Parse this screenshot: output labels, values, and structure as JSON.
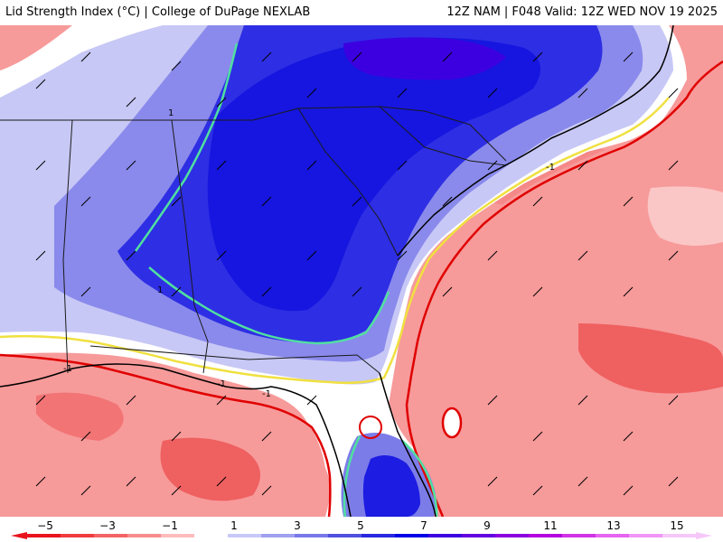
{
  "header": {
    "title_left": "Lid Strength Index (°C) | College of DuPage NEXLAB",
    "title_right": "12Z NAM | F048 Valid: 12Z WED NOV 19 2025"
  },
  "legend": {
    "ticks": [
      "−5",
      "−3",
      "−1",
      "1",
      "3",
      "5",
      "7",
      "9",
      "11",
      "13",
      "15"
    ],
    "colors": [
      "#e8141e",
      "#f03c3c",
      "#f46464",
      "#f88c8c",
      "#fcbcbc",
      "#ffffff",
      "#c8c8f8",
      "#a0a0f0",
      "#7878ea",
      "#5050e0",
      "#2828e0",
      "#0000e6",
      "#3c00e0",
      "#6400e0",
      "#8c00e0",
      "#b400e0",
      "#d232e6",
      "#e664f0",
      "#f096f6",
      "#f6c8fa"
    ]
  },
  "map": {
    "contour_labels": [
      "-1",
      "-1",
      "-1",
      "1",
      "1",
      "-1"
    ],
    "colors": {
      "ocean_base": "#f79a9a",
      "ocean_strong": "#ef5f5f",
      "land_light": "#b9b9f2",
      "land_mid": "#7c7ce9",
      "land_strong": "#2c2ce3",
      "land_core": "#1414e0",
      "contour_red": "#e00000",
      "contour_yellow": "#f0e040",
      "contour_green": "#50e0a0",
      "contour_orange": "#f4b070",
      "state_lines": "#1a1a1a",
      "county_lines": "#8a8ab0"
    }
  }
}
